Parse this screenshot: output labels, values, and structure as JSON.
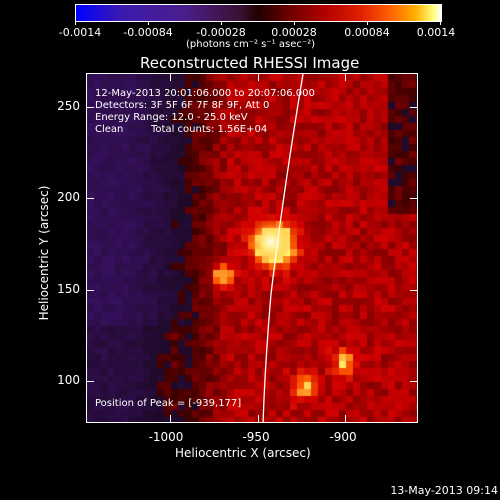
{
  "colorbar": {
    "ticks": [
      "-0.0014",
      "-0.00084",
      "-0.00028",
      "0.00028",
      "0.00084",
      "0.0014"
    ],
    "units": "(photons cm⁻² s⁻¹ asec⁻²)"
  },
  "title": "Reconstructed RHESSI Image",
  "info": {
    "time_range": "12-May-2013 20:01:06.000 to 20:07:06.000",
    "detectors": "Detectors: 3F 5F 6F 7F 8F 9F, Att 0",
    "energy": "Energy Range: 12.0 - 25.0 keV",
    "method": "Clean",
    "counts": "Total counts: 1.56E+04",
    "peak": "Position of Peak = [-939,177]"
  },
  "axes": {
    "x_title": "Heliocentric X (arcsec)",
    "y_title": "Heliocentric Y (arcsec)",
    "x_ticks": [
      "-1000",
      "-950",
      "-900"
    ],
    "y_ticks": [
      "250",
      "200",
      "150",
      "100"
    ]
  },
  "footer": "13-May-2013 09:14"
}
